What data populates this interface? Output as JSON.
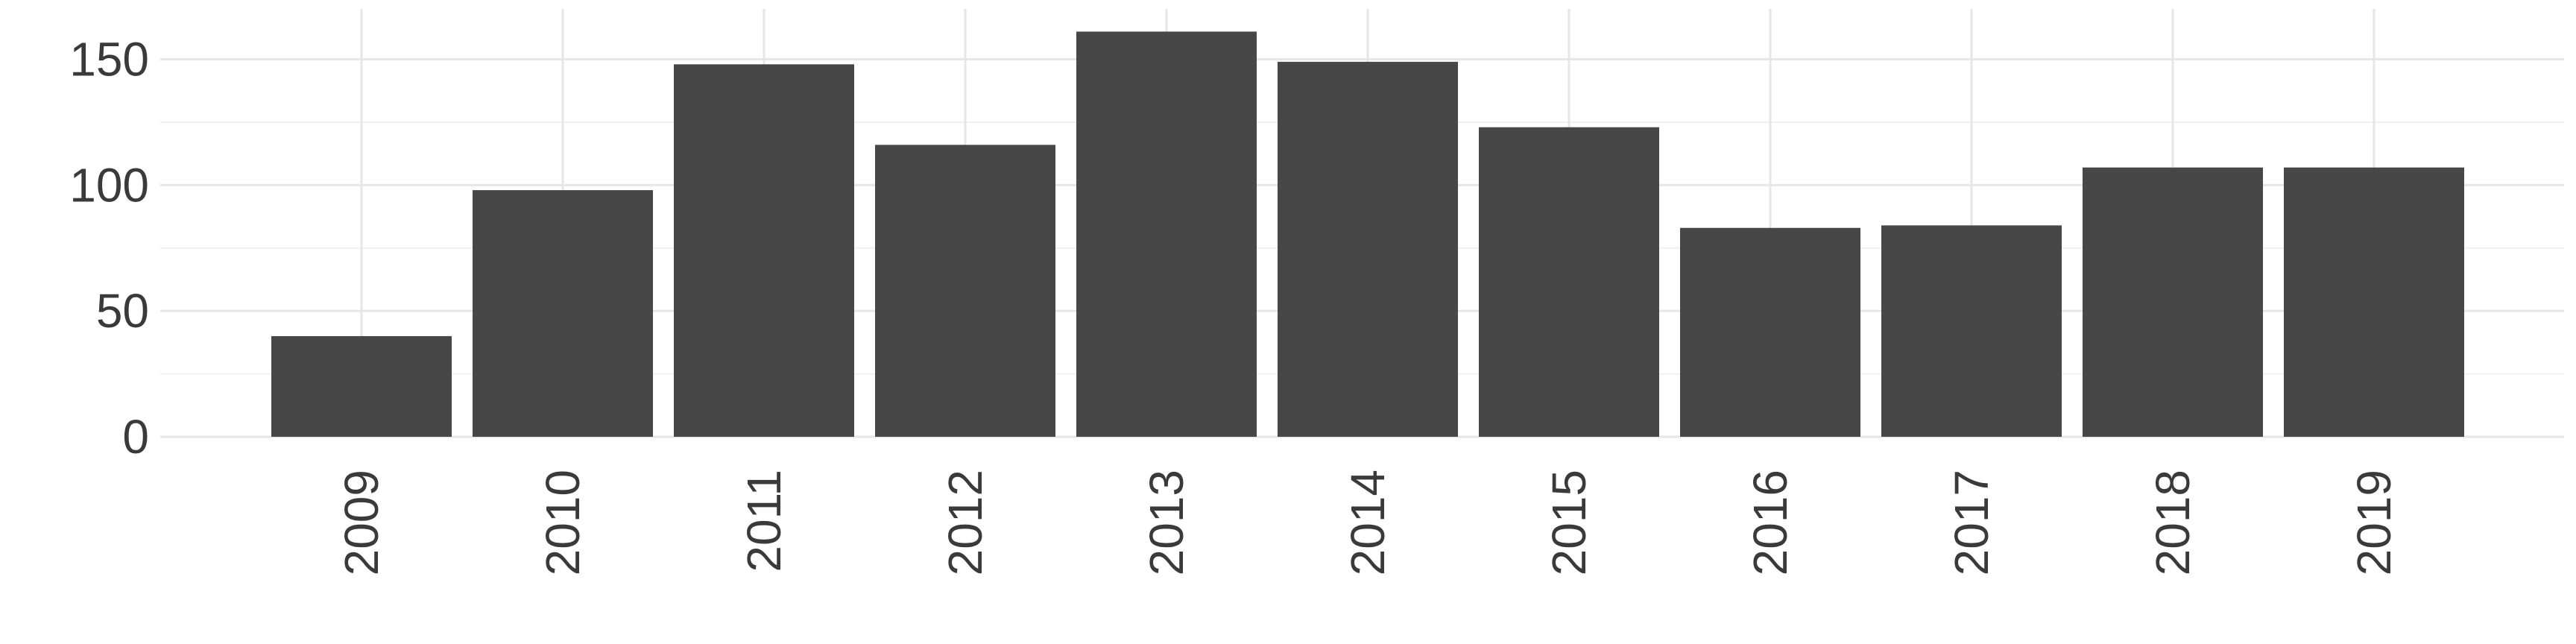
{
  "chart_data": {
    "type": "bar",
    "categories": [
      "2009",
      "2010",
      "2011",
      "2012",
      "2013",
      "2014",
      "2015",
      "2016",
      "2017",
      "2018",
      "2019"
    ],
    "values": [
      40,
      98,
      148,
      116,
      161,
      149,
      123,
      83,
      84,
      107,
      107
    ],
    "title": "",
    "xlabel": "",
    "ylabel": "",
    "ylim": [
      0,
      170
    ],
    "yticks": [
      0,
      50,
      100,
      150
    ],
    "grid": true,
    "bar_color": "#474747",
    "grid_color": "#e6e6e6"
  }
}
